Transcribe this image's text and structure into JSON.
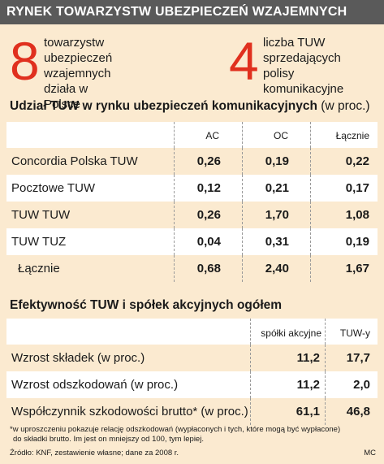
{
  "header": {
    "title": "RYNEK TOWARZYSTW UBEZPIECZEŃ WZAJEMNYCH"
  },
  "stats": [
    {
      "number": "8",
      "lines": [
        "towarzystw ubezpieczeń",
        "wzajemnych",
        "działa w Polsce"
      ]
    },
    {
      "number": "4",
      "lines": [
        "liczba TUW",
        "sprzedających polisy",
        "komunikacyjne"
      ]
    }
  ],
  "table1": {
    "title_bold": "Udział TUW w rynku ubezpieczeń komunikacyjnych",
    "title_normal": " (w proc.)",
    "columns": [
      "AC",
      "OC",
      "Łącznie"
    ],
    "rows": [
      {
        "label": "Concordia Polska TUW",
        "values": [
          "0,26",
          "0,19",
          "0,22"
        ]
      },
      {
        "label": "Pocztowe TUW",
        "values": [
          "0,12",
          "0,21",
          "0,17"
        ]
      },
      {
        "label": "TUW TUW",
        "values": [
          "0,26",
          "1,70",
          "1,08"
        ]
      },
      {
        "label": "TUW TUZ",
        "values": [
          "0,04",
          "0,31",
          "0,19"
        ]
      },
      {
        "label": "Łącznie",
        "values": [
          "0,68",
          "2,40",
          "1,67"
        ]
      }
    ]
  },
  "table2": {
    "title": "Efektywność TUW i spółek akcyjnych ogółem",
    "columns": [
      "spółki akcyjne",
      "TUW-y"
    ],
    "rows": [
      {
        "label": "Wzrost składek (w proc.)",
        "values": [
          "11,2",
          "17,7"
        ]
      },
      {
        "label": "Wzrost odszkodowań (w proc.)",
        "values": [
          "11,2",
          "2,0"
        ]
      },
      {
        "label": "Współczynnik szkodowości brutto* (w proc.)",
        "values": [
          "61,1",
          "46,8"
        ]
      }
    ]
  },
  "footnote": {
    "line1": "*w uproszczeniu pokazuje relację odszkodowań (wypłaconych i tych, które mogą być wypłacone)",
    "line2": "do składki brutto. Im jest on mniejszy od 100, tym lepiej."
  },
  "source": "Źródło: KNF, zestawienie własne; dane za 2008 r.",
  "credit": "MC"
}
